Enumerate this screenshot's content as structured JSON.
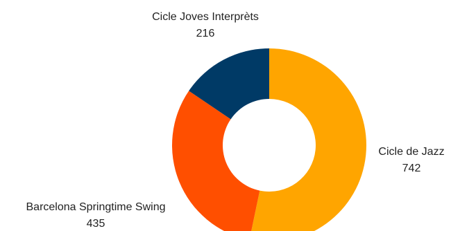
{
  "chart_data": {
    "type": "pie",
    "variant": "donut",
    "title": "",
    "slices": [
      {
        "name": "Cicle de Jazz",
        "value": 742,
        "color": "#FFA500"
      },
      {
        "name": "Barcelona Springtime Swing",
        "value": 435,
        "color": "#FF4F00"
      },
      {
        "name": "Cicle Joves Interprèts",
        "value": 216,
        "color": "#003A66"
      }
    ],
    "start_angle_deg": 0,
    "direction": "clockwise",
    "legend": "none",
    "labels": "outside slices (category name with value below)"
  }
}
